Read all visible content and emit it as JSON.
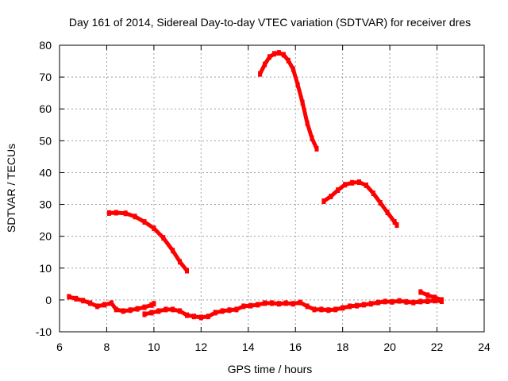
{
  "chart_data": {
    "type": "scatter",
    "title": "Day 161 of 2014, Sidereal Day-to-day VTEC variation (SDTVAR) for receiver dres",
    "xlabel": "GPS time / hours",
    "ylabel": "SDTVAR / TECUs",
    "xlim": [
      6,
      24
    ],
    "ylim": [
      -10,
      80
    ],
    "xticks": [
      6,
      8,
      10,
      12,
      14,
      16,
      18,
      20,
      22,
      24
    ],
    "yticks": [
      -10,
      0,
      10,
      20,
      30,
      40,
      50,
      60,
      70,
      80
    ],
    "grid": true,
    "color": "#ff0000",
    "series": [
      {
        "name": "arc-low-1",
        "x": [
          6.4,
          6.7,
          7.0,
          7.3,
          7.6,
          7.9,
          8.2,
          8.4,
          8.7,
          9.0,
          9.3,
          9.6,
          9.9,
          10.0
        ],
        "y": [
          1.0,
          0.4,
          -0.2,
          -1.0,
          -2.0,
          -1.5,
          -1.0,
          -3.0,
          -3.5,
          -3.2,
          -2.8,
          -2.3,
          -1.6,
          -1.2
        ]
      },
      {
        "name": "arc-low-2",
        "x": [
          9.6,
          9.9,
          10.2,
          10.5,
          10.8,
          11.1,
          11.4,
          11.7,
          12.0,
          12.3,
          12.6,
          12.9,
          13.2,
          13.5,
          13.8,
          14.1,
          14.4,
          14.7,
          15.0,
          15.3,
          15.6,
          15.9,
          16.2,
          16.5,
          16.8,
          17.1,
          17.4,
          17.7,
          18.0,
          18.3,
          18.6,
          18.9,
          19.2,
          19.5,
          19.8,
          20.1,
          20.4,
          20.7,
          21.0,
          21.3,
          21.6,
          21.9,
          22.2
        ],
        "y": [
          -4.5,
          -4.0,
          -3.5,
          -3.0,
          -3.0,
          -3.5,
          -4.8,
          -5.2,
          -5.5,
          -5.2,
          -4.0,
          -3.5,
          -3.2,
          -3.0,
          -2.0,
          -1.8,
          -1.5,
          -1.0,
          -1.0,
          -1.2,
          -1.0,
          -1.2,
          -0.8,
          -2.0,
          -3.0,
          -3.0,
          -3.2,
          -3.0,
          -2.5,
          -2.0,
          -1.8,
          -1.5,
          -1.2,
          -0.8,
          -0.5,
          -0.6,
          -0.3,
          -0.6,
          -0.8,
          -0.5,
          -0.4,
          -0.2,
          -0.4
        ]
      },
      {
        "name": "arc-low-3",
        "x": [
          21.3,
          21.6,
          21.9,
          22.2
        ],
        "y": [
          2.5,
          1.5,
          0.8,
          0.0
        ]
      },
      {
        "name": "arc-morning",
        "x": [
          8.1,
          8.4,
          8.8,
          9.2,
          9.6,
          10.0,
          10.4,
          10.8,
          11.1,
          11.4
        ],
        "y": [
          27.3,
          27.4,
          27.2,
          26.2,
          24.5,
          22.5,
          19.5,
          15.5,
          12.0,
          9.2
        ]
      },
      {
        "name": "arc-peak",
        "x": [
          14.5,
          14.7,
          14.9,
          15.1,
          15.3,
          15.5,
          15.7,
          15.9,
          16.1,
          16.3,
          16.5,
          16.7,
          16.9
        ],
        "y": [
          71.0,
          74.0,
          76.3,
          77.3,
          77.6,
          77.0,
          75.2,
          72.5,
          67.5,
          62.0,
          55.5,
          50.8,
          47.5
        ]
      },
      {
        "name": "arc-evening",
        "x": [
          17.2,
          17.5,
          17.8,
          18.1,
          18.4,
          18.7,
          19.0,
          19.3,
          19.6,
          19.9,
          20.2,
          20.3
        ],
        "y": [
          31.0,
          32.5,
          34.5,
          36.2,
          36.8,
          37.0,
          36.0,
          33.5,
          30.5,
          27.5,
          24.5,
          23.5
        ]
      }
    ]
  }
}
